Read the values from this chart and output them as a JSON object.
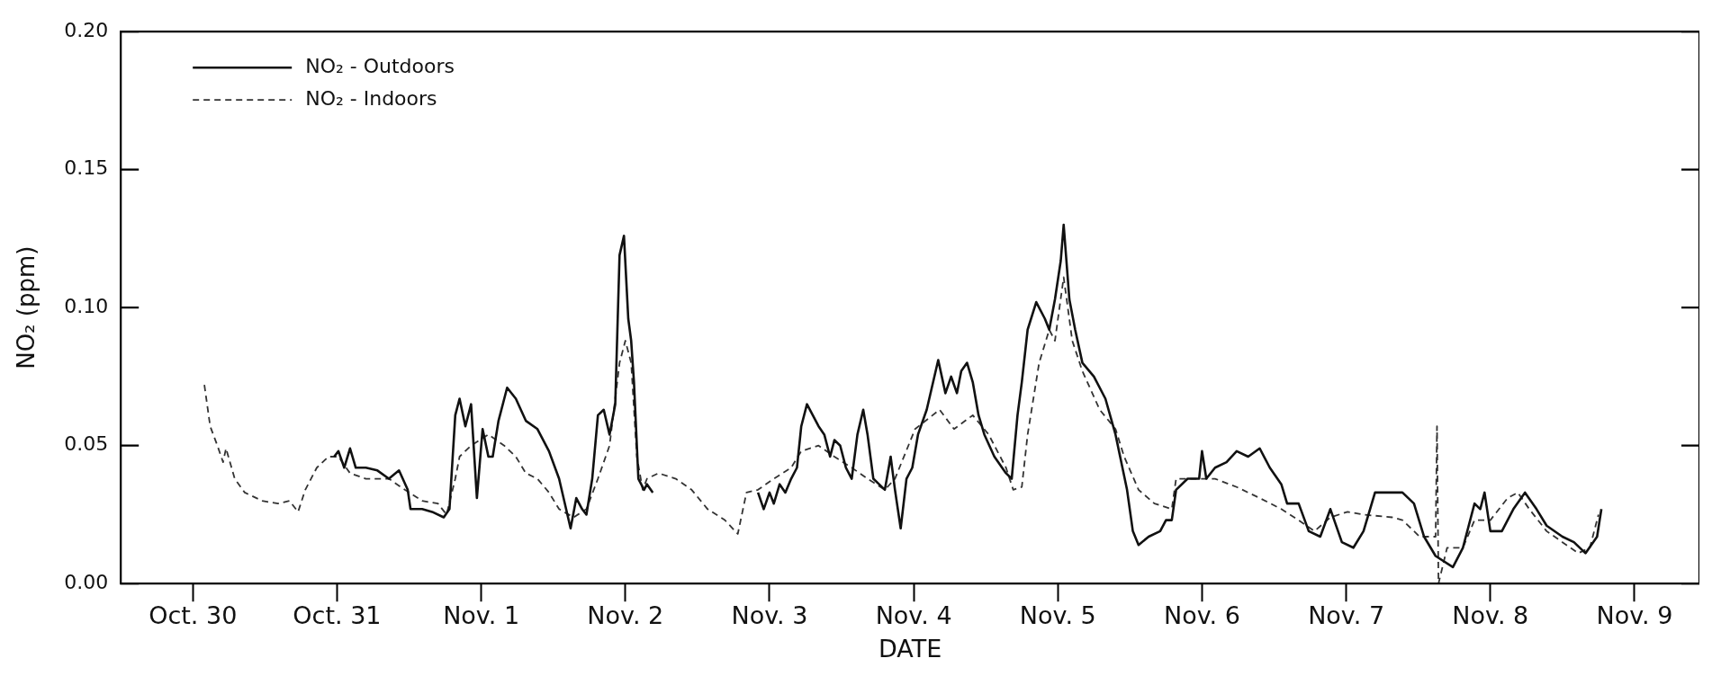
{
  "chart_data": {
    "type": "line",
    "xlabel": "DATE",
    "ylabel": "NO₂ (ppm)",
    "legend": "top left",
    "grid": false,
    "xlim": [
      "--10-30T00:00",
      "--11-09T22:48"
    ],
    "ylim": [
      0,
      0.2
    ],
    "xticks": [
      {
        "value": "--10-30T12:00",
        "label": "Oct. 30"
      },
      {
        "value": "--10-31T12:00",
        "label": "Oct. 31"
      },
      {
        "value": "--11-01T12:00",
        "label": "Nov. 1"
      },
      {
        "value": "--11-02T12:00",
        "label": "Nov. 2"
      },
      {
        "value": "--11-03T12:00",
        "label": "Nov. 3"
      },
      {
        "value": "--11-04T12:00",
        "label": "Nov. 4"
      },
      {
        "value": "--11-05T12:00",
        "label": "Nov. 5"
      },
      {
        "value": "--11-06T12:00",
        "label": "Nov. 6"
      },
      {
        "value": "--11-07T12:00",
        "label": "Nov. 7"
      },
      {
        "value": "--11-08T12:00",
        "label": "Nov. 8"
      },
      {
        "value": "--11-09T12:00",
        "label": "Nov. 9"
      }
    ],
    "yticks": [
      {
        "value": 0,
        "label": "0.00"
      },
      {
        "value": 0.05,
        "label": "0.05"
      },
      {
        "value": 0.1,
        "label": "0.10"
      },
      {
        "value": 0.15,
        "label": "0.15"
      },
      {
        "value": 0.2,
        "label": "0.20"
      }
    ],
    "series": [
      {
        "name": "NO₂ - Outdoors",
        "color": "#111111",
        "line_style": "solid",
        "x": [
          "--10-31T11:31",
          "--10-31T12:14",
          "--10-31T13:12",
          "--10-31T14:10",
          "--10-31T15:07",
          "--10-31T16:48",
          "--10-31T18:43",
          "--10-31T20:38",
          "--10-31T22:19",
          "--10-31T23:46",
          "--11-01T00:14",
          "--11-01T02:10",
          "--11-01T03:50",
          "--11-01T05:46",
          "--11-01T06:43",
          "--11-01T07:41",
          "--11-01T08:24",
          "--11-01T09:22",
          "--11-01T10:19",
          "--11-01T11:17",
          "--11-01T12:14",
          "--11-01T13:12",
          "--11-01T13:55",
          "--11-01T14:53",
          "--11-01T16:19",
          "--11-01T17:46",
          "--11-01T19:26",
          "--11-01T21:22",
          "--11-01T23:17",
          "--11-02T00:58",
          "--11-02T02:53",
          "--11-02T03:50",
          "--11-02T04:48",
          "--11-02T05:31",
          "--11-02T06:29",
          "--11-02T07:26",
          "--11-02T08:24",
          "--11-02T09:22",
          "--11-02T10:19",
          "--11-02T11:02",
          "--11-02T11:46",
          "--11-02T12:29",
          "--11-02T12:58",
          "--11-02T13:26",
          "--11-02T14:10",
          "--11-02T15:07",
          "--11-02T15:36",
          "--11-02T16:34",
          "--11-03T00:00",
          "--11-03T10:05",
          "--11-03T11:02",
          "--11-03T12:00",
          "--11-03T12:43",
          "--11-03T13:41",
          "--11-03T14:38",
          "--11-03T15:36",
          "--11-03T16:34",
          "--11-03T17:17",
          "--11-03T18:14",
          "--11-03T19:12",
          "--11-03T20:10",
          "--11-03T21:07",
          "--11-03T22:05",
          "--11-03T22:48",
          "--11-03T23:46",
          "--11-04T00:43",
          "--11-04T01:41",
          "--11-04T02:38",
          "--11-04T03:36",
          "--11-04T04:19",
          "--11-04T05:17",
          "--11-04T06:14",
          "--11-04T07:12",
          "--11-04T08:10",
          "--11-04T08:53",
          "--11-04T09:50",
          "--11-04T10:48",
          "--11-04T11:46",
          "--11-04T12:43",
          "--11-04T14:10",
          "--11-04T16:05",
          "--11-04T17:17",
          "--11-04T18:14",
          "--11-04T19:12",
          "--11-04T19:55",
          "--11-04T20:53",
          "--11-04T21:50",
          "--11-04T22:48",
          "--11-04T23:46",
          "--11-05T01:26",
          "--11-05T03:22",
          "--11-05T04:19",
          "--11-05T05:17",
          "--11-05T06:00",
          "--11-05T06:58",
          "--11-05T08:24",
          "--11-05T09:50",
          "--11-05T10:34",
          "--11-05T11:31",
          "--11-05T12:29",
          "--11-05T12:58",
          "--11-05T13:55",
          "--11-05T14:53",
          "--11-05T16:05",
          "--11-05T18:00",
          "--11-05T19:55",
          "--11-05T21:36",
          "--11-05T23:31",
          "--11-06T00:29",
          "--11-06T01:26",
          "--11-06T03:07",
          "--11-06T05:02",
          "--11-06T06:00",
          "--11-06T06:58",
          "--11-06T07:41",
          "--11-06T09:36",
          "--11-06T11:31",
          "--11-06T12:00",
          "--11-06T12:43",
          "--11-06T14:10",
          "--11-06T16:05",
          "--11-06T17:46",
          "--11-06T19:41",
          "--11-06T21:36",
          "--11-06T23:17",
          "--11-07T01:12",
          "--11-07T02:10",
          "--11-07T04:05",
          "--11-07T05:46",
          "--11-07T07:41",
          "--11-07T09:22",
          "--11-07T11:17",
          "--11-07T13:12",
          "--11-07T14:53",
          "--11-07T16:48",
          "--11-07T18:43",
          "--11-07T21:22",
          "--11-07T23:17",
          "--11-08T00:58",
          "--11-08T02:53",
          "--11-08T05:46",
          "--11-08T07:26",
          "--11-08T09:22",
          "--11-08T10:19",
          "--11-08T11:02",
          "--11-08T12:00",
          "--11-08T13:55",
          "--11-08T15:50",
          "--11-08T17:46",
          "--11-08T19:41",
          "--11-08T21:22",
          "--11-09T00:00",
          "--11-09T01:55",
          "--11-09T03:50",
          "--11-09T05:46",
          "--11-09T06:29"
        ],
        "values": [
          0.046,
          0.048,
          0.042,
          0.049,
          0.042,
          0.042,
          0.041,
          0.038,
          0.041,
          0.034,
          0.027,
          0.027,
          0.026,
          0.024,
          0.027,
          0.061,
          0.067,
          0.057,
          0.065,
          0.031,
          0.056,
          0.046,
          0.046,
          0.059,
          0.071,
          0.067,
          0.059,
          0.056,
          0.048,
          0.038,
          0.02,
          0.031,
          0.027,
          0.025,
          0.038,
          0.061,
          0.063,
          0.054,
          0.065,
          0.119,
          0.126,
          0.096,
          0.088,
          0.073,
          0.038,
          0.034,
          0.036,
          0.033,
          null,
          0.033,
          0.027,
          0.033,
          0.029,
          0.036,
          0.033,
          0.038,
          0.042,
          0.057,
          0.065,
          0.061,
          0.057,
          0.054,
          0.046,
          0.052,
          0.05,
          0.042,
          0.038,
          0.054,
          0.063,
          0.054,
          0.038,
          0.036,
          0.034,
          0.046,
          0.034,
          0.02,
          0.038,
          0.042,
          0.054,
          0.063,
          0.081,
          0.069,
          0.075,
          0.069,
          0.077,
          0.08,
          0.073,
          0.061,
          0.054,
          0.046,
          0.04,
          0.038,
          0.061,
          0.073,
          0.092,
          0.102,
          0.096,
          0.092,
          0.103,
          0.117,
          0.13,
          0.103,
          0.092,
          0.08,
          0.075,
          0.067,
          0.054,
          0.034,
          0.019,
          0.014,
          0.017,
          0.019,
          0.023,
          0.023,
          0.034,
          0.038,
          0.038,
          0.048,
          0.038,
          0.042,
          0.044,
          0.048,
          0.046,
          0.049,
          0.042,
          0.036,
          0.029,
          0.029,
          0.019,
          0.017,
          0.027,
          0.015,
          0.013,
          0.019,
          0.033,
          0.033,
          0.033,
          0.029,
          0.017,
          0.01,
          0.006,
          0.013,
          0.029,
          0.027,
          0.033,
          0.019,
          0.019,
          0.027,
          0.033,
          0.027,
          0.021,
          0.017,
          0.015,
          0.011,
          0.017,
          0.027
        ]
      },
      {
        "name": "NO₂ - Indoors",
        "color": "#333333",
        "line_style": "dashed",
        "x": [
          "--10-30T13:55",
          "--10-30T14:53",
          "--10-30T16:05",
          "--10-30T17:02",
          "--10-30T17:31",
          "--10-30T18:58",
          "--10-30T20:38",
          "--10-30T23:31",
          "--10-31T02:10",
          "--10-31T04:05",
          "--10-31T05:31",
          "--10-31T06:43",
          "--10-31T08:38",
          "--10-31T10:34",
          "--10-31T12:14",
          "--10-31T14:10",
          "--10-31T16:48",
          "--10-31T20:38",
          "--10-31T23:17",
          "--11-01T02:10",
          "--11-01T04:48",
          "--11-01T06:14",
          "--11-01T07:41",
          "--11-01T08:24",
          "--11-01T10:19",
          "--11-01T13:12",
          "--11-01T15:50",
          "--11-01T17:46",
          "--11-01T19:26",
          "--11-01T21:22",
          "--11-01T23:17",
          "--11-02T00:58",
          "--11-02T03:22",
          "--11-02T05:31",
          "--11-02T07:26",
          "--11-02T09:22",
          "--11-02T11:02",
          "--11-02T12:00",
          "--11-02T12:58",
          "--11-02T13:55",
          "--11-02T14:53",
          "--11-02T15:36",
          "--11-02T17:31",
          "--11-02T20:24",
          "--11-02T23:02",
          "--11-03T01:41",
          "--11-03T04:34",
          "--11-03T06:43",
          "--11-03T08:10",
          "--11-03T10:05",
          "--11-03T12:43",
          "--11-03T15:36",
          "--11-03T17:17",
          "--11-03T20:10",
          "--11-03T22:48",
          "--11-04T01:41",
          "--11-04T04:19",
          "--11-04T07:12",
          "--11-04T08:53",
          "--11-04T12:14",
          "--11-04T16:19",
          "--11-04T18:43",
          "--11-04T21:50",
          "--11-05T00:29",
          "--11-05T03:22",
          "--11-05T04:34",
          "--11-05T06:00",
          "--11-05T06:58",
          "--11-05T08:53",
          "--11-05T10:34",
          "--11-05T11:31",
          "--11-05T12:58",
          "--11-05T14:24",
          "--11-05T16:05",
          "--11-05T18:58",
          "--11-05T21:36",
          "--11-05T23:02",
          "--11-06T01:26",
          "--11-06T04:05",
          "--11-06T06:58",
          "--11-06T07:41",
          "--11-06T10:34",
          "--11-06T14:10",
          "--11-06T17:46",
          "--11-06T21:36",
          "--11-07T01:12",
          "--11-07T04:05",
          "--11-07T06:43",
          "--11-07T09:22",
          "--11-07T12:14",
          "--11-07T14:53",
          "--11-07T19:41",
          "--11-07T21:22",
          "--11-08T00:14",
          "--11-08T01:55",
          "--11-08T02:53",
          "--11-08T03:07",
          "--11-08T03:22",
          "--11-08T04:48",
          "--11-08T07:26",
          "--11-08T09:22",
          "--11-08T12:00",
          "--11-08T14:53",
          "--11-08T16:34",
          "--11-08T18:29",
          "--11-08T21:22",
          "--11-09T00:00",
          "--11-09T02:38",
          "--11-09T04:34",
          "--11-09T06:00"
        ],
        "values": [
          0.072,
          0.057,
          0.05,
          0.044,
          0.049,
          0.038,
          0.033,
          0.03,
          0.029,
          0.03,
          0.026,
          0.034,
          0.042,
          0.046,
          0.046,
          0.04,
          0.038,
          0.038,
          0.034,
          0.03,
          0.029,
          0.025,
          0.038,
          0.046,
          0.05,
          0.054,
          0.05,
          0.046,
          0.04,
          0.038,
          0.033,
          0.027,
          0.024,
          0.027,
          0.038,
          0.05,
          0.08,
          0.088,
          0.08,
          0.046,
          0.034,
          0.038,
          0.04,
          0.038,
          0.034,
          0.027,
          0.023,
          0.018,
          0.033,
          0.034,
          0.038,
          0.042,
          0.048,
          0.05,
          0.046,
          0.042,
          0.038,
          0.034,
          0.038,
          0.056,
          0.063,
          0.056,
          0.061,
          0.054,
          0.042,
          0.034,
          0.035,
          0.054,
          0.08,
          0.092,
          0.088,
          0.111,
          0.088,
          0.077,
          0.063,
          0.056,
          0.046,
          0.034,
          0.029,
          0.027,
          0.038,
          0.038,
          0.038,
          0.035,
          0.031,
          0.027,
          0.023,
          0.019,
          0.024,
          0.026,
          0.025,
          0.024,
          0.023,
          0.017,
          0.017,
          0.017,
          0.057,
          0.0,
          0.013,
          0.013,
          0.023,
          0.023,
          0.031,
          0.033,
          0.027,
          0.019,
          0.015,
          0.011,
          0.013,
          0.025
        ]
      }
    ]
  }
}
